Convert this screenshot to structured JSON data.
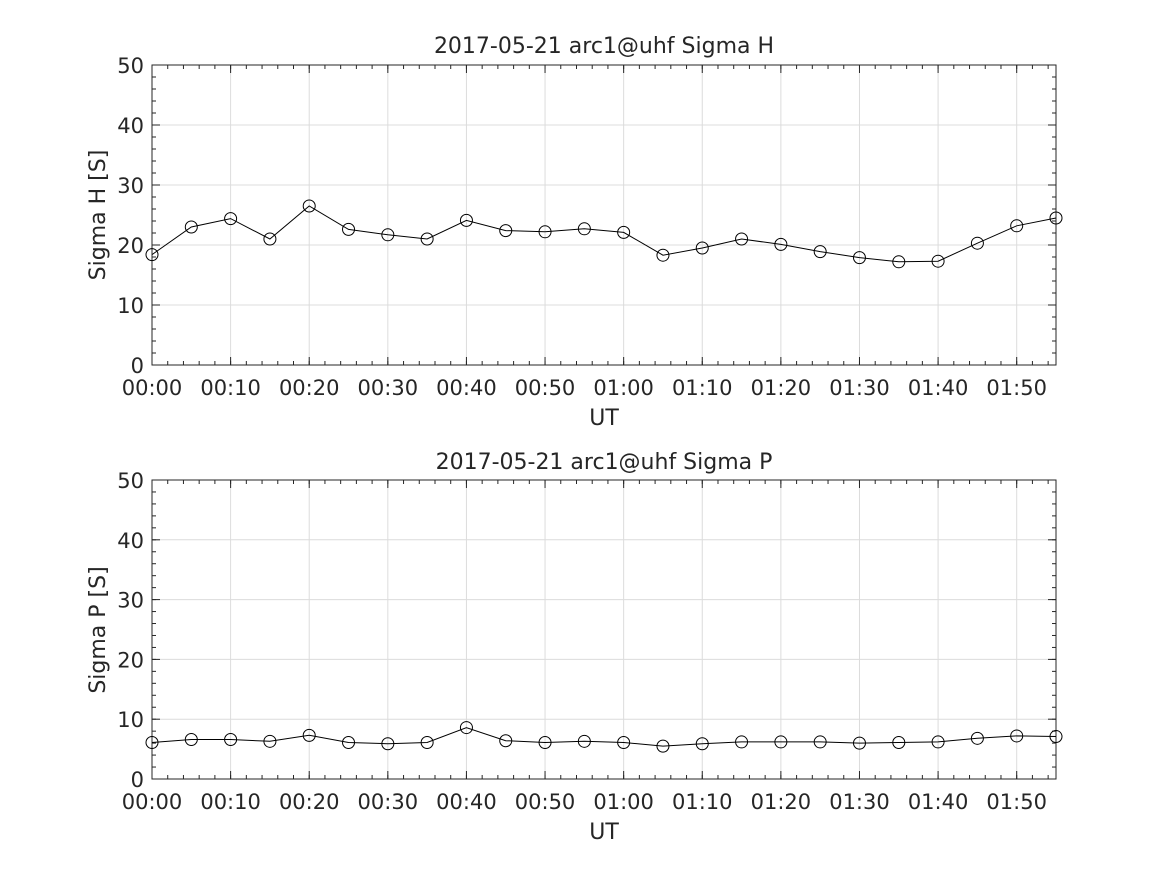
{
  "chart_data": [
    {
      "type": "line",
      "title": "2017-05-21  arc1@uhf Sigma H",
      "xlabel": "UT",
      "ylabel": "Sigma H [S]",
      "x_tick_labels": [
        "00:00",
        "00:10",
        "00:20",
        "00:30",
        "00:40",
        "00:50",
        "01:00",
        "01:10",
        "01:20",
        "01:30",
        "01:40",
        "01:50"
      ],
      "y_tick_labels": [
        "0",
        "10",
        "20",
        "30",
        "40",
        "50"
      ],
      "ylim": [
        0,
        50
      ],
      "xlim": [
        "00:00",
        "01:55"
      ],
      "grid": true,
      "marker": "open-circle",
      "line_color": "#000000",
      "x": [
        "00:00",
        "00:05",
        "00:10",
        "00:15",
        "00:20",
        "00:25",
        "00:30",
        "00:35",
        "00:40",
        "00:45",
        "00:50",
        "00:55",
        "01:00",
        "01:05",
        "01:10",
        "01:15",
        "01:20",
        "01:25",
        "01:30",
        "01:35",
        "01:40",
        "01:45",
        "01:50",
        "01:55"
      ],
      "values": [
        18.4,
        23.0,
        24.4,
        21.0,
        26.5,
        22.6,
        21.7,
        21.0,
        24.1,
        22.4,
        22.2,
        22.7,
        22.1,
        18.3,
        19.5,
        21.0,
        20.1,
        18.9,
        17.9,
        17.2,
        17.3,
        20.3,
        23.2,
        24.5
      ]
    },
    {
      "type": "line",
      "title": "2017-05-21  arc1@uhf Sigma P",
      "xlabel": "UT",
      "ylabel": "Sigma P [S]",
      "x_tick_labels": [
        "00:00",
        "00:10",
        "00:20",
        "00:30",
        "00:40",
        "00:50",
        "01:00",
        "01:10",
        "01:20",
        "01:30",
        "01:40",
        "01:50"
      ],
      "y_tick_labels": [
        "0",
        "10",
        "20",
        "30",
        "40",
        "50"
      ],
      "ylim": [
        0,
        50
      ],
      "xlim": [
        "00:00",
        "01:55"
      ],
      "grid": true,
      "marker": "open-circle",
      "line_color": "#000000",
      "x": [
        "00:00",
        "00:05",
        "00:10",
        "00:15",
        "00:20",
        "00:25",
        "00:30",
        "00:35",
        "00:40",
        "00:45",
        "00:50",
        "00:55",
        "01:00",
        "01:05",
        "01:10",
        "01:15",
        "01:20",
        "01:25",
        "01:30",
        "01:35",
        "01:40",
        "01:45",
        "01:50",
        "01:55"
      ],
      "values": [
        6.1,
        6.6,
        6.6,
        6.3,
        7.3,
        6.1,
        5.9,
        6.1,
        8.6,
        6.4,
        6.1,
        6.3,
        6.1,
        5.5,
        5.9,
        6.2,
        6.2,
        6.2,
        6.0,
        6.1,
        6.2,
        6.8,
        7.2,
        7.1
      ]
    }
  ]
}
